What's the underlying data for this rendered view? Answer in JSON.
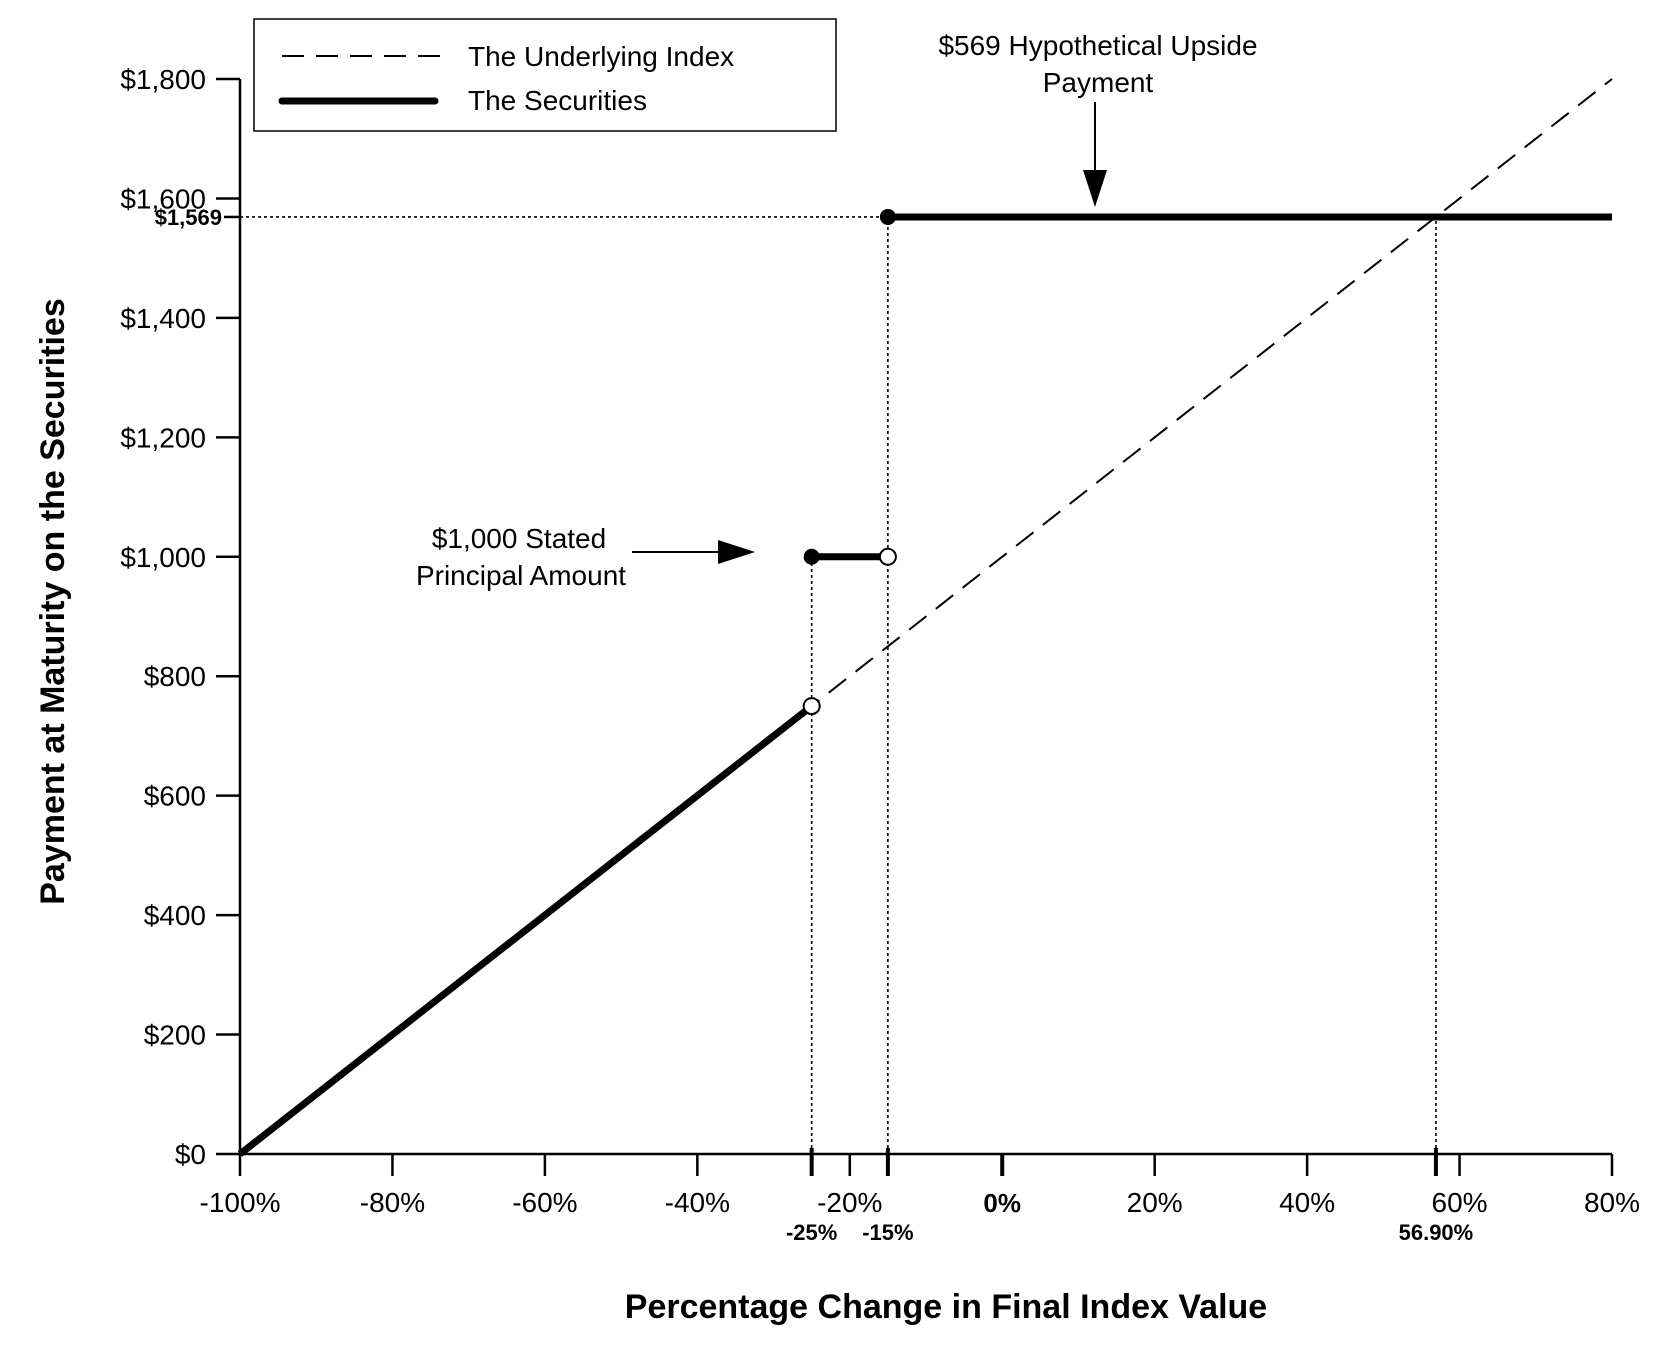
{
  "chart_data": {
    "type": "line",
    "xlabel": "Percentage Change in Final Index Value",
    "ylabel": "Payment at Maturity on the Securities",
    "xlim": [
      -100,
      80
    ],
    "ylim": [
      0,
      1800
    ],
    "x_ticks": [
      {
        "value": -100,
        "label": "-100%"
      },
      {
        "value": -80,
        "label": "-80%"
      },
      {
        "value": -60,
        "label": "-60%"
      },
      {
        "value": -40,
        "label": "-40%"
      },
      {
        "value": -20,
        "label": "-20%"
      },
      {
        "value": 0,
        "label": "0%"
      },
      {
        "value": 20,
        "label": "20%"
      },
      {
        "value": 40,
        "label": "40%"
      },
      {
        "value": 60,
        "label": "60%"
      },
      {
        "value": 80,
        "label": "80%"
      }
    ],
    "y_ticks": [
      {
        "value": 0,
        "label": "$0"
      },
      {
        "value": 200,
        "label": "$200"
      },
      {
        "value": 400,
        "label": "$400"
      },
      {
        "value": 600,
        "label": "$600"
      },
      {
        "value": 800,
        "label": "$800"
      },
      {
        "value": 1000,
        "label": "$1,000"
      },
      {
        "value": 1200,
        "label": "$1,200"
      },
      {
        "value": 1400,
        "label": "$1,400"
      },
      {
        "value": 1600,
        "label": "$1,600"
      },
      {
        "value": 1800,
        "label": "$1,800"
      }
    ],
    "marker_x_labels": [
      {
        "value": -25,
        "label": "-25%"
      },
      {
        "value": -15,
        "label": "-15%"
      },
      {
        "value": 56.9,
        "label": "56.90%"
      }
    ],
    "marker_y_labels": [
      {
        "value": 1569,
        "label": "$1,569"
      }
    ],
    "series": [
      {
        "name": "The Underlying Index",
        "style": "dashed",
        "points": [
          [
            -100,
            0
          ],
          [
            80,
            1800
          ]
        ]
      },
      {
        "name": "The Securities",
        "style": "solid-thick",
        "segments": [
          {
            "points": [
              [
                -100,
                0
              ],
              [
                -25,
                750
              ]
            ],
            "end_marker": "open"
          },
          {
            "points": [
              [
                -25,
                1000
              ],
              [
                -15,
                1000
              ]
            ],
            "start_marker": "filled",
            "end_marker": "open"
          },
          {
            "points": [
              [
                -15,
                1569
              ],
              [
                80,
                1569
              ]
            ],
            "start_marker": "filled"
          }
        ]
      }
    ],
    "reference_lines": [
      {
        "orientation": "vertical",
        "x": -25,
        "y_to": 1000
      },
      {
        "orientation": "vertical",
        "x": -15,
        "y_to": 1569
      },
      {
        "orientation": "vertical",
        "x": 56.9,
        "y_to": 1569
      },
      {
        "orientation": "horizontal",
        "y": 1569,
        "x_from": -100,
        "x_to": -15
      }
    ],
    "annotations": [
      {
        "lines": [
          "$569 Hypothetical Upside",
          "Payment"
        ],
        "arrow_direction": "down"
      },
      {
        "lines": [
          "$1,000 Stated",
          "Principal Amount"
        ],
        "arrow_direction": "right"
      }
    ],
    "legend_position": "top-left",
    "grid": false
  }
}
